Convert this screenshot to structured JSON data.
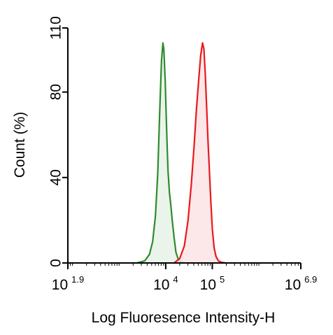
{
  "chart_data": {
    "type": "area",
    "title": "",
    "xlabel": "Log Fluoresence Intensity-H",
    "ylabel": "Count  (%)",
    "x_scale": "log10",
    "xlim": [
      1.9,
      6.9
    ],
    "ylim": [
      0,
      110
    ],
    "x_ticks": [
      {
        "value": 1.9,
        "base": "10",
        "exp": "1.9"
      },
      {
        "value": 4,
        "base": "10",
        "exp": "4"
      },
      {
        "value": 5,
        "base": "10",
        "exp": "5"
      },
      {
        "value": 6.9,
        "base": "10",
        "exp": "6.9"
      }
    ],
    "y_ticks": [
      {
        "value": 0,
        "label": "0"
      },
      {
        "value": 40,
        "label": "40"
      },
      {
        "value": 80,
        "label": "80"
      },
      {
        "value": 110,
        "label": "110"
      }
    ],
    "grid": false,
    "legend": "none",
    "series": [
      {
        "color": "#2e8b2e",
        "fill": "#e6f2e6",
        "x": [
          3.38,
          3.55,
          3.65,
          3.72,
          3.78,
          3.83,
          3.87,
          3.91,
          3.94,
          3.96,
          3.99,
          4.01,
          4.03,
          4.05,
          4.08,
          4.11,
          4.14,
          4.18,
          4.22,
          4.28,
          4.4
        ],
        "y": [
          0,
          1,
          4,
          10,
          22,
          42,
          70,
          95,
          103,
          100,
          85,
          70,
          55,
          43,
          33,
          27,
          20,
          12,
          5,
          1,
          0
        ]
      },
      {
        "color": "#e8191b",
        "fill": "#fbe3e5",
        "x": [
          4.18,
          4.3,
          4.4,
          4.48,
          4.55,
          4.61,
          4.66,
          4.71,
          4.75,
          4.79,
          4.82,
          4.85,
          4.88,
          4.91,
          4.94,
          4.97,
          5.0,
          5.04,
          5.08,
          5.13,
          5.2,
          5.28
        ],
        "y": [
          0,
          2,
          8,
          20,
          37,
          55,
          72,
          86,
          97,
          103,
          100,
          88,
          72,
          56,
          42,
          28,
          16,
          7,
          3,
          1,
          0.3,
          0
        ]
      }
    ]
  }
}
